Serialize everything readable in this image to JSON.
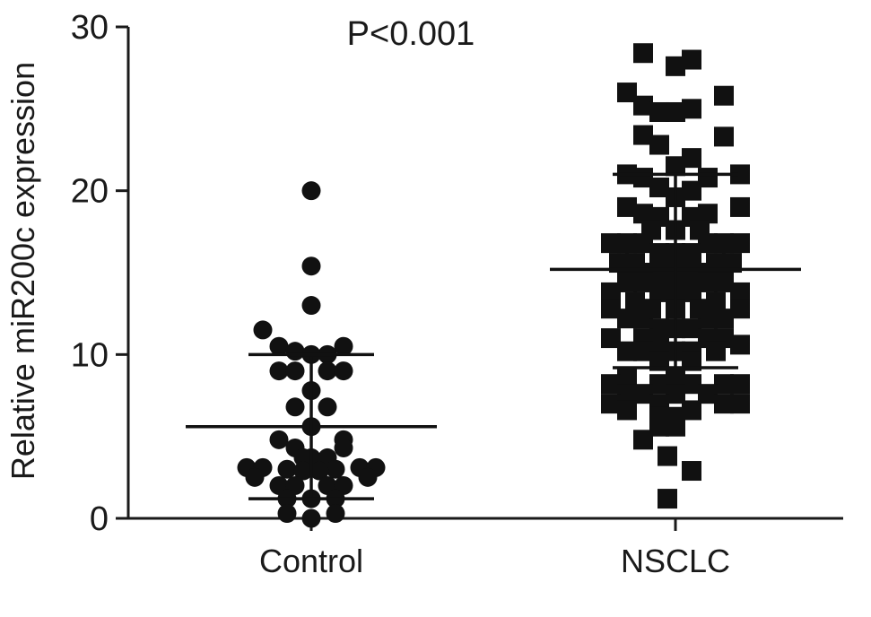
{
  "chart_data": {
    "type": "scatter",
    "subtype": "dot-plot with mean and SD bars",
    "ylabel": "Relative miR200c expression",
    "ylim": [
      0,
      30
    ],
    "yticks": [
      0,
      10,
      20,
      30
    ],
    "categories": [
      "Control",
      "NSCLC"
    ],
    "annotation": "P<0.001",
    "grid": false,
    "legend": "none",
    "groups": [
      {
        "category": "Control",
        "marker": "circle",
        "mean": 5.6,
        "sd_upper": 10.0,
        "sd_lower": 1.2,
        "points": [
          {
            "y": 20.0,
            "dx": 0
          },
          {
            "y": 15.4,
            "dx": 0
          },
          {
            "y": 13.0,
            "dx": 0
          },
          {
            "y": 11.5,
            "dx": -3
          },
          {
            "y": 10.5,
            "dx": -2
          },
          {
            "y": 10.5,
            "dx": 2
          },
          {
            "y": 10.2,
            "dx": -1
          },
          {
            "y": 10.0,
            "dx": 1
          },
          {
            "y": 10.0,
            "dx": 0
          },
          {
            "y": 9.0,
            "dx": -2
          },
          {
            "y": 9.0,
            "dx": -1
          },
          {
            "y": 9.0,
            "dx": 1
          },
          {
            "y": 9.0,
            "dx": 2
          },
          {
            "y": 7.8,
            "dx": 0
          },
          {
            "y": 6.8,
            "dx": -1
          },
          {
            "y": 6.8,
            "dx": 1
          },
          {
            "y": 5.6,
            "dx": 0
          },
          {
            "y": 4.8,
            "dx": -2
          },
          {
            "y": 4.8,
            "dx": 2
          },
          {
            "y": 4.3,
            "dx": -1
          },
          {
            "y": 4.3,
            "dx": 2
          },
          {
            "y": 3.7,
            "dx": 0
          },
          {
            "y": 3.7,
            "dx": 1
          },
          {
            "y": 3.7,
            "dx": -0.5
          },
          {
            "y": 3.1,
            "dx": -4
          },
          {
            "y": 3.1,
            "dx": -3
          },
          {
            "y": 3.0,
            "dx": -1.5
          },
          {
            "y": 3.0,
            "dx": 1.5
          },
          {
            "y": 3.1,
            "dx": 3
          },
          {
            "y": 3.1,
            "dx": 4
          },
          {
            "y": 2.5,
            "dx": -3.5
          },
          {
            "y": 2.5,
            "dx": 3.5
          },
          {
            "y": 2.9,
            "dx": -0.5
          },
          {
            "y": 2.9,
            "dx": 0.5
          },
          {
            "y": 2.0,
            "dx": -2
          },
          {
            "y": 2.0,
            "dx": -1
          },
          {
            "y": 2.0,
            "dx": 1
          },
          {
            "y": 2.0,
            "dx": 2
          },
          {
            "y": 1.2,
            "dx": -1.5
          },
          {
            "y": 1.2,
            "dx": 0
          },
          {
            "y": 1.2,
            "dx": 1.5
          },
          {
            "y": 0.3,
            "dx": -1.5
          },
          {
            "y": 0.0,
            "dx": 0
          },
          {
            "y": 0.3,
            "dx": 1.5
          }
        ]
      },
      {
        "category": "NSCLC",
        "marker": "square",
        "mean": 15.2,
        "sd_upper": 21.0,
        "sd_lower": 9.2,
        "points": [
          {
            "y": 28.4,
            "dx": -2
          },
          {
            "y": 28.0,
            "dx": 1
          },
          {
            "y": 27.6,
            "dx": 0
          },
          {
            "y": 26.0,
            "dx": -3
          },
          {
            "y": 25.8,
            "dx": 3
          },
          {
            "y": 25.2,
            "dx": -2
          },
          {
            "y": 24.8,
            "dx": -1
          },
          {
            "y": 24.8,
            "dx": 0
          },
          {
            "y": 25.0,
            "dx": 1
          },
          {
            "y": 23.4,
            "dx": -2
          },
          {
            "y": 23.3,
            "dx": 3
          },
          {
            "y": 22.8,
            "dx": -1
          },
          {
            "y": 22.0,
            "dx": 1
          },
          {
            "y": 21.5,
            "dx": 0
          },
          {
            "y": 21.0,
            "dx": -3
          },
          {
            "y": 21.0,
            "dx": 4
          },
          {
            "y": 20.8,
            "dx": -2
          },
          {
            "y": 20.8,
            "dx": 2
          },
          {
            "y": 20.2,
            "dx": -1
          },
          {
            "y": 20.0,
            "dx": 1
          },
          {
            "y": 19.6,
            "dx": 0
          },
          {
            "y": 19.0,
            "dx": -3
          },
          {
            "y": 19.0,
            "dx": 4
          },
          {
            "y": 18.6,
            "dx": -2
          },
          {
            "y": 18.6,
            "dx": 2
          },
          {
            "y": 18.4,
            "dx": -1
          },
          {
            "y": 18.4,
            "dx": 1
          },
          {
            "y": 17.6,
            "dx": 0
          },
          {
            "y": 17.6,
            "dx": -1.5
          },
          {
            "y": 17.6,
            "dx": 1.5
          },
          {
            "y": 16.8,
            "dx": -4
          },
          {
            "y": 16.8,
            "dx": -3
          },
          {
            "y": 16.8,
            "dx": -2
          },
          {
            "y": 16.8,
            "dx": 2
          },
          {
            "y": 16.8,
            "dx": 3
          },
          {
            "y": 16.8,
            "dx": 4
          },
          {
            "y": 16.2,
            "dx": -1
          },
          {
            "y": 16.2,
            "dx": 0
          },
          {
            "y": 16.2,
            "dx": 1
          },
          {
            "y": 15.6,
            "dx": -3.5
          },
          {
            "y": 15.6,
            "dx": -2.5
          },
          {
            "y": 15.6,
            "dx": 2.5
          },
          {
            "y": 15.6,
            "dx": 3.5
          },
          {
            "y": 15.0,
            "dx": -1.5
          },
          {
            "y": 15.0,
            "dx": -0.5
          },
          {
            "y": 15.0,
            "dx": 0.5
          },
          {
            "y": 15.0,
            "dx": 1.5
          },
          {
            "y": 14.4,
            "dx": -3
          },
          {
            "y": 14.4,
            "dx": -2
          },
          {
            "y": 14.4,
            "dx": 2
          },
          {
            "y": 14.4,
            "dx": 3
          },
          {
            "y": 13.8,
            "dx": -4
          },
          {
            "y": 13.8,
            "dx": -1
          },
          {
            "y": 13.8,
            "dx": 0
          },
          {
            "y": 13.8,
            "dx": 1
          },
          {
            "y": 13.8,
            "dx": 4
          },
          {
            "y": 13.2,
            "dx": -2.5
          },
          {
            "y": 13.2,
            "dx": 2.5
          },
          {
            "y": 12.8,
            "dx": -4
          },
          {
            "y": 12.8,
            "dx": -1.5
          },
          {
            "y": 12.8,
            "dx": 0
          },
          {
            "y": 12.8,
            "dx": 1.5
          },
          {
            "y": 12.8,
            "dx": 4
          },
          {
            "y": 12.2,
            "dx": -3
          },
          {
            "y": 12.2,
            "dx": -2
          },
          {
            "y": 12.2,
            "dx": 2
          },
          {
            "y": 12.2,
            "dx": 3
          },
          {
            "y": 11.6,
            "dx": -1
          },
          {
            "y": 11.6,
            "dx": 0
          },
          {
            "y": 11.6,
            "dx": 1
          },
          {
            "y": 11.0,
            "dx": -4
          },
          {
            "y": 11.0,
            "dx": -2
          },
          {
            "y": 11.0,
            "dx": 2
          },
          {
            "y": 11.0,
            "dx": 3
          },
          {
            "y": 10.6,
            "dx": -1
          },
          {
            "y": 10.6,
            "dx": 4
          },
          {
            "y": 10.2,
            "dx": -3
          },
          {
            "y": 10.2,
            "dx": -2
          },
          {
            "y": 10.2,
            "dx": 0
          },
          {
            "y": 10.2,
            "dx": 1
          },
          {
            "y": 10.2,
            "dx": 2.5
          },
          {
            "y": 9.6,
            "dx": -1
          },
          {
            "y": 9.6,
            "dx": 1
          },
          {
            "y": 8.6,
            "dx": -3
          },
          {
            "y": 8.6,
            "dx": 0
          },
          {
            "y": 8.2,
            "dx": -4
          },
          {
            "y": 8.2,
            "dx": -1
          },
          {
            "y": 8.2,
            "dx": 1
          },
          {
            "y": 8.2,
            "dx": 3
          },
          {
            "y": 8.2,
            "dx": 4
          },
          {
            "y": 7.6,
            "dx": -3
          },
          {
            "y": 7.6,
            "dx": -2
          },
          {
            "y": 7.6,
            "dx": 0
          },
          {
            "y": 7.6,
            "dx": 2
          },
          {
            "y": 7.0,
            "dx": -4
          },
          {
            "y": 7.0,
            "dx": -1
          },
          {
            "y": 7.0,
            "dx": 3
          },
          {
            "y": 7.0,
            "dx": 4
          },
          {
            "y": 6.6,
            "dx": -3
          },
          {
            "y": 6.6,
            "dx": 1
          },
          {
            "y": 6.2,
            "dx": -1
          },
          {
            "y": 6.2,
            "dx": 0
          },
          {
            "y": 5.6,
            "dx": -1
          },
          {
            "y": 5.6,
            "dx": 0
          },
          {
            "y": 4.8,
            "dx": -2
          },
          {
            "y": 3.8,
            "dx": -0.5
          },
          {
            "y": 2.9,
            "dx": 1
          },
          {
            "y": 1.2,
            "dx": -0.5
          }
        ]
      }
    ]
  }
}
